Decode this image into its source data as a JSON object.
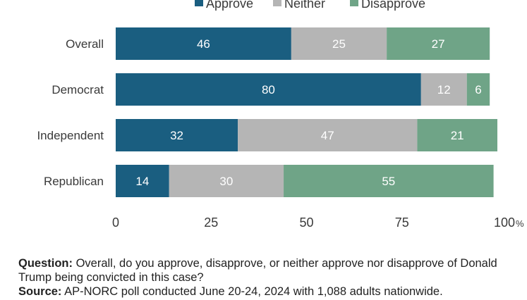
{
  "chart_data": {
    "type": "bar",
    "stacked": true,
    "orientation": "horizontal",
    "categories": [
      "Overall",
      "Democrat",
      "Independent",
      "Republican"
    ],
    "series": [
      {
        "name": "Approve",
        "color": "#1a5e80",
        "values": [
          46,
          80,
          32,
          14
        ]
      },
      {
        "name": "Neither",
        "color": "#b5b5b5",
        "values": [
          25,
          12,
          47,
          30
        ]
      },
      {
        "name": "Disapprove",
        "color": "#6fa487",
        "values": [
          27,
          6,
          21,
          55
        ]
      }
    ],
    "xlim": [
      0,
      100
    ],
    "xticks": [
      0,
      25,
      50,
      75,
      100
    ],
    "x_unit": "%",
    "grid": false,
    "legend_position": "top"
  },
  "notes": {
    "question_label": "Question:",
    "question_text": " Overall, do you approve, disapprove, or neither approve nor disapprove of Donald Trump being convicted in this case?",
    "source_label": "Source:",
    "source_text": " AP-NORC poll conducted June 20-24, 2024 with 1,088 adults nationwide."
  }
}
